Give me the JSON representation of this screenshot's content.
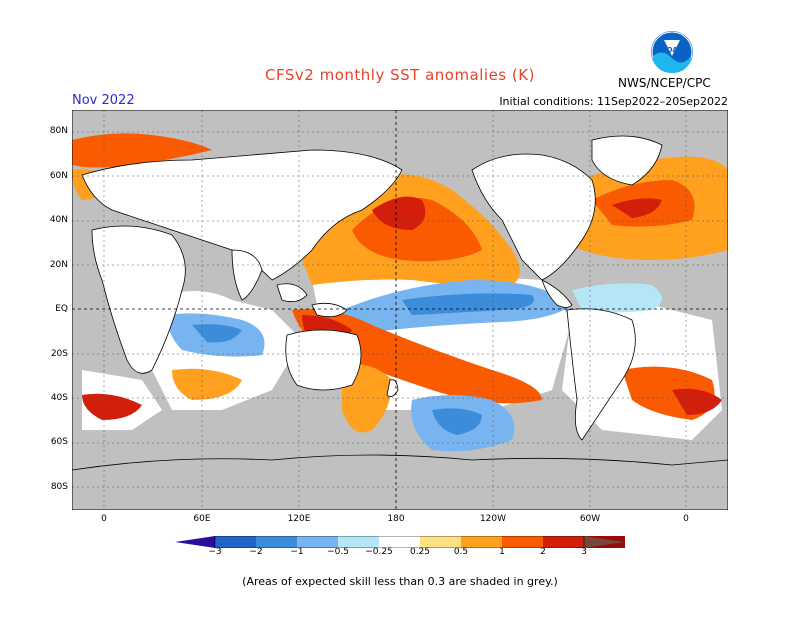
{
  "header": {
    "title": "CFSv2 monthly SST anomalies (K)",
    "month": "Nov 2022",
    "initial_conditions": "Initial conditions: 11Sep2022–20Sep2022",
    "agency": "NWS/NCEP/CPC",
    "logo_text": "NOAA"
  },
  "axes": {
    "lat_labels": [
      "80N",
      "60N",
      "40N",
      "20N",
      "EQ",
      "20S",
      "40S",
      "60S",
      "80S"
    ],
    "lon_labels": [
      "0",
      "60E",
      "120E",
      "180",
      "120W",
      "60W",
      "0"
    ]
  },
  "colorbar": {
    "labels": [
      "−3",
      "−2",
      "−1",
      "−0.5",
      "−0.25",
      "0.25",
      "0.5",
      "1",
      "2",
      "3"
    ],
    "colors": [
      "#2b0f9a",
      "#1f64c8",
      "#3c8cdc",
      "#78b4f0",
      "#b4e6f8",
      "#ffffff",
      "#fce082",
      "#ffa01e",
      "#fa5a00",
      "#d21e0a",
      "#960a0a",
      "#784637"
    ]
  },
  "footnote": "(Areas of expected skill less than 0.3 are shaded in grey.)",
  "colors": {
    "title": "#e8422b",
    "month": "#2a2ad8",
    "grey_mask": "#c0c0c0",
    "land": "#ffffff"
  }
}
